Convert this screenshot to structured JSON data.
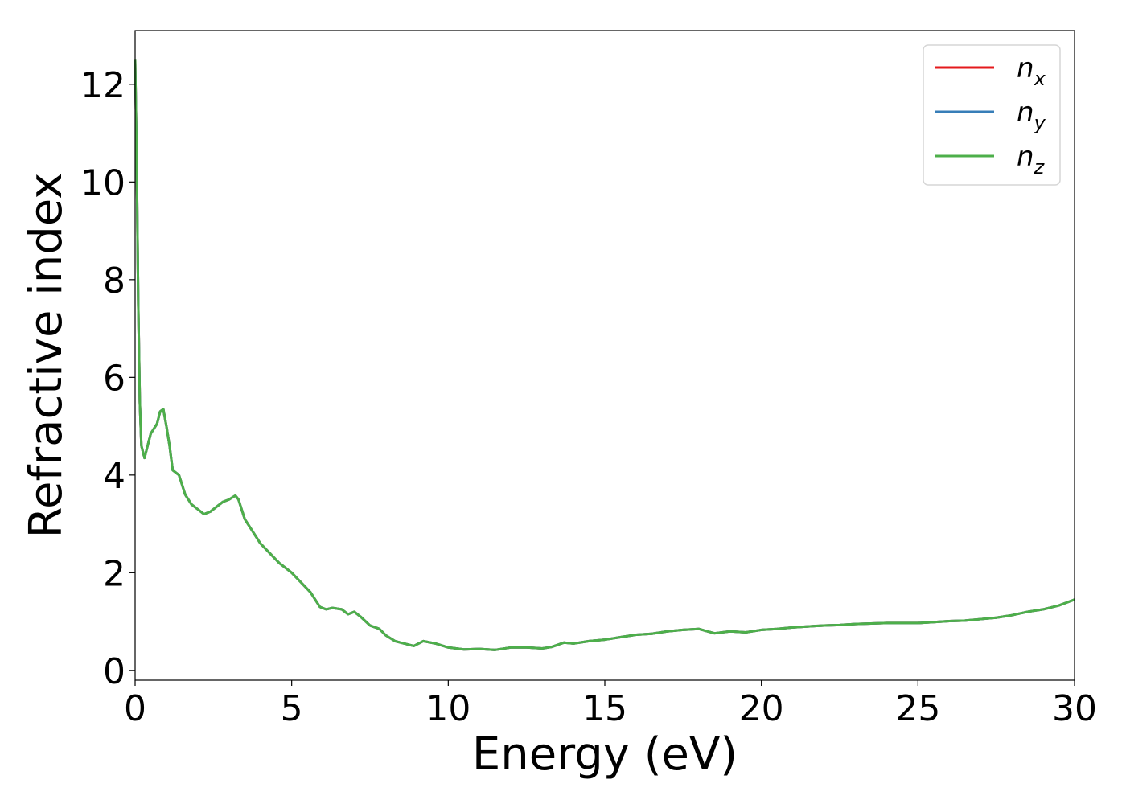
{
  "chart_data": {
    "type": "line",
    "title": "",
    "xlabel": "Energy (eV)",
    "ylabel": "Refractive index",
    "xlim": [
      0,
      30
    ],
    "ylim": [
      -0.2,
      13.1
    ],
    "xticks": [
      0,
      5,
      10,
      15,
      20,
      25,
      30
    ],
    "yticks": [
      0,
      2,
      4,
      6,
      8,
      10,
      12
    ],
    "grid": false,
    "legend": {
      "placement": "top-right"
    },
    "series": [
      {
        "name": "n_x",
        "label_base": "n",
        "label_sub": "x",
        "color": "#e41a1c",
        "x": [
          0,
          0.05,
          0.1,
          0.15,
          0.2,
          0.3,
          0.4,
          0.5,
          0.6,
          0.7,
          0.8,
          0.9,
          1.0,
          1.1,
          1.2,
          1.4,
          1.6,
          1.8,
          2.0,
          2.2,
          2.4,
          2.6,
          2.8,
          3.0,
          3.2,
          3.3,
          3.5,
          3.7,
          4.0,
          4.3,
          4.6,
          5.0,
          5.3,
          5.6,
          5.9,
          6.1,
          6.3,
          6.6,
          6.8,
          7.0,
          7.2,
          7.5,
          7.8,
          8.0,
          8.3,
          8.6,
          8.9,
          9.2,
          9.6,
          10.0,
          10.5,
          11.0,
          11.5,
          12.0,
          12.5,
          13.0,
          13.3,
          13.7,
          14.0,
          14.5,
          15.0,
          15.5,
          16.0,
          16.5,
          17.0,
          17.5,
          18.0,
          18.5,
          19.0,
          19.5,
          20.0,
          20.5,
          21.0,
          21.5,
          22.0,
          22.5,
          23.0,
          23.5,
          24.0,
          24.5,
          25.0,
          25.5,
          26.0,
          26.5,
          27.0,
          27.5,
          28.0,
          28.5,
          29.0,
          29.5,
          30.0
        ],
        "y": [
          12.5,
          10.5,
          7.5,
          5.5,
          4.6,
          4.35,
          4.6,
          4.85,
          4.95,
          5.05,
          5.3,
          5.35,
          5.0,
          4.6,
          4.1,
          4.0,
          3.6,
          3.4,
          3.3,
          3.2,
          3.25,
          3.35,
          3.45,
          3.5,
          3.58,
          3.5,
          3.1,
          2.9,
          2.6,
          2.4,
          2.2,
          2.0,
          1.8,
          1.6,
          1.3,
          1.25,
          1.28,
          1.25,
          1.15,
          1.2,
          1.1,
          0.92,
          0.85,
          0.72,
          0.6,
          0.55,
          0.5,
          0.6,
          0.55,
          0.47,
          0.43,
          0.44,
          0.42,
          0.47,
          0.47,
          0.45,
          0.48,
          0.57,
          0.55,
          0.6,
          0.63,
          0.68,
          0.73,
          0.75,
          0.8,
          0.83,
          0.85,
          0.76,
          0.8,
          0.78,
          0.83,
          0.85,
          0.88,
          0.9,
          0.92,
          0.93,
          0.95,
          0.96,
          0.97,
          0.97,
          0.97,
          0.99,
          1.01,
          1.02,
          1.05,
          1.08,
          1.13,
          1.2,
          1.25,
          1.33,
          1.45
        ]
      },
      {
        "name": "n_y",
        "label_base": "n",
        "label_sub": "y",
        "color": "#377eb8",
        "x": [
          0,
          0.05,
          0.1,
          0.15,
          0.2,
          0.3,
          0.4,
          0.5,
          0.6,
          0.7,
          0.8,
          0.9,
          1.0,
          1.1,
          1.2,
          1.4,
          1.6,
          1.8,
          2.0,
          2.2,
          2.4,
          2.6,
          2.8,
          3.0,
          3.2,
          3.3,
          3.5,
          3.7,
          4.0,
          4.3,
          4.6,
          5.0,
          5.3,
          5.6,
          5.9,
          6.1,
          6.3,
          6.6,
          6.8,
          7.0,
          7.2,
          7.5,
          7.8,
          8.0,
          8.3,
          8.6,
          8.9,
          9.2,
          9.6,
          10.0,
          10.5,
          11.0,
          11.5,
          12.0,
          12.5,
          13.0,
          13.3,
          13.7,
          14.0,
          14.5,
          15.0,
          15.5,
          16.0,
          16.5,
          17.0,
          17.5,
          18.0,
          18.5,
          19.0,
          19.5,
          20.0,
          20.5,
          21.0,
          21.5,
          22.0,
          22.5,
          23.0,
          23.5,
          24.0,
          24.5,
          25.0,
          25.5,
          26.0,
          26.5,
          27.0,
          27.5,
          28.0,
          28.5,
          29.0,
          29.5,
          30.0
        ],
        "y": [
          12.5,
          10.5,
          7.5,
          5.5,
          4.6,
          4.35,
          4.6,
          4.85,
          4.95,
          5.05,
          5.3,
          5.35,
          5.0,
          4.6,
          4.1,
          4.0,
          3.6,
          3.4,
          3.3,
          3.2,
          3.25,
          3.35,
          3.45,
          3.5,
          3.58,
          3.5,
          3.1,
          2.9,
          2.6,
          2.4,
          2.2,
          2.0,
          1.8,
          1.6,
          1.3,
          1.25,
          1.28,
          1.25,
          1.15,
          1.2,
          1.1,
          0.92,
          0.85,
          0.72,
          0.6,
          0.55,
          0.5,
          0.6,
          0.55,
          0.47,
          0.43,
          0.44,
          0.42,
          0.47,
          0.47,
          0.45,
          0.48,
          0.57,
          0.55,
          0.6,
          0.63,
          0.68,
          0.73,
          0.75,
          0.8,
          0.83,
          0.85,
          0.76,
          0.8,
          0.78,
          0.83,
          0.85,
          0.88,
          0.9,
          0.92,
          0.93,
          0.95,
          0.96,
          0.97,
          0.97,
          0.97,
          0.99,
          1.01,
          1.02,
          1.05,
          1.08,
          1.13,
          1.2,
          1.25,
          1.33,
          1.45
        ]
      },
      {
        "name": "n_z",
        "label_base": "n",
        "label_sub": "z",
        "color": "#4daf4a",
        "x": [
          0,
          0.05,
          0.1,
          0.15,
          0.2,
          0.3,
          0.4,
          0.5,
          0.6,
          0.7,
          0.8,
          0.9,
          1.0,
          1.1,
          1.2,
          1.4,
          1.6,
          1.8,
          2.0,
          2.2,
          2.4,
          2.6,
          2.8,
          3.0,
          3.2,
          3.3,
          3.5,
          3.7,
          4.0,
          4.3,
          4.6,
          5.0,
          5.3,
          5.6,
          5.9,
          6.1,
          6.3,
          6.6,
          6.8,
          7.0,
          7.2,
          7.5,
          7.8,
          8.0,
          8.3,
          8.6,
          8.9,
          9.2,
          9.6,
          10.0,
          10.5,
          11.0,
          11.5,
          12.0,
          12.5,
          13.0,
          13.3,
          13.7,
          14.0,
          14.5,
          15.0,
          15.5,
          16.0,
          16.5,
          17.0,
          17.5,
          18.0,
          18.5,
          19.0,
          19.5,
          20.0,
          20.5,
          21.0,
          21.5,
          22.0,
          22.5,
          23.0,
          23.5,
          24.0,
          24.5,
          25.0,
          25.5,
          26.0,
          26.5,
          27.0,
          27.5,
          28.0,
          28.5,
          29.0,
          29.5,
          30.0
        ],
        "y": [
          12.5,
          10.5,
          7.5,
          5.5,
          4.6,
          4.35,
          4.6,
          4.85,
          4.95,
          5.05,
          5.3,
          5.35,
          5.0,
          4.6,
          4.1,
          4.0,
          3.6,
          3.4,
          3.3,
          3.2,
          3.25,
          3.35,
          3.45,
          3.5,
          3.58,
          3.5,
          3.1,
          2.9,
          2.6,
          2.4,
          2.2,
          2.0,
          1.8,
          1.6,
          1.3,
          1.25,
          1.28,
          1.25,
          1.15,
          1.2,
          1.1,
          0.92,
          0.85,
          0.72,
          0.6,
          0.55,
          0.5,
          0.6,
          0.55,
          0.47,
          0.43,
          0.44,
          0.42,
          0.47,
          0.47,
          0.45,
          0.48,
          0.57,
          0.55,
          0.6,
          0.63,
          0.68,
          0.73,
          0.75,
          0.8,
          0.83,
          0.85,
          0.76,
          0.8,
          0.78,
          0.83,
          0.85,
          0.88,
          0.9,
          0.92,
          0.93,
          0.95,
          0.96,
          0.97,
          0.97,
          0.97,
          0.99,
          1.01,
          1.02,
          1.05,
          1.08,
          1.13,
          1.2,
          1.25,
          1.33,
          1.45
        ]
      }
    ]
  }
}
